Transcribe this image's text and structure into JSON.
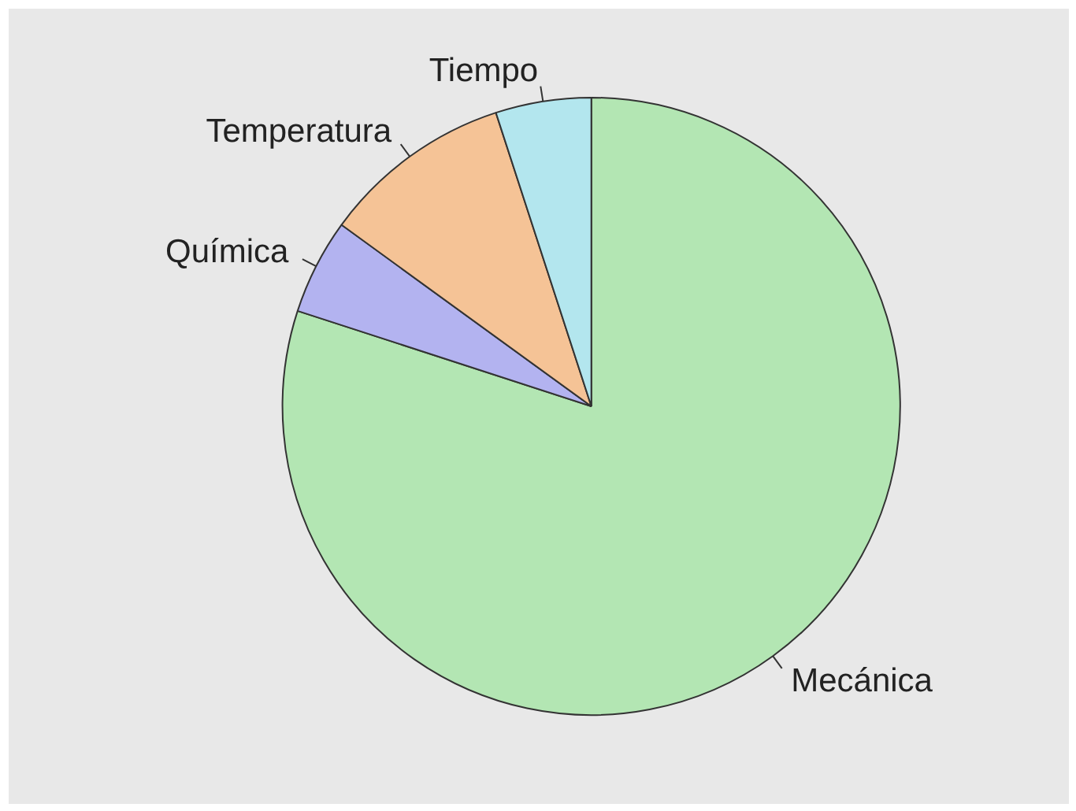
{
  "chart_data": {
    "type": "pie",
    "categories": [
      "Mecánica",
      "Química",
      "Temperatura",
      "Tiempo"
    ],
    "values": [
      80,
      5,
      10,
      5
    ],
    "colors": [
      "#b3e6b3",
      "#b3b3f0",
      "#f5c396",
      "#b3e6ee"
    ]
  }
}
